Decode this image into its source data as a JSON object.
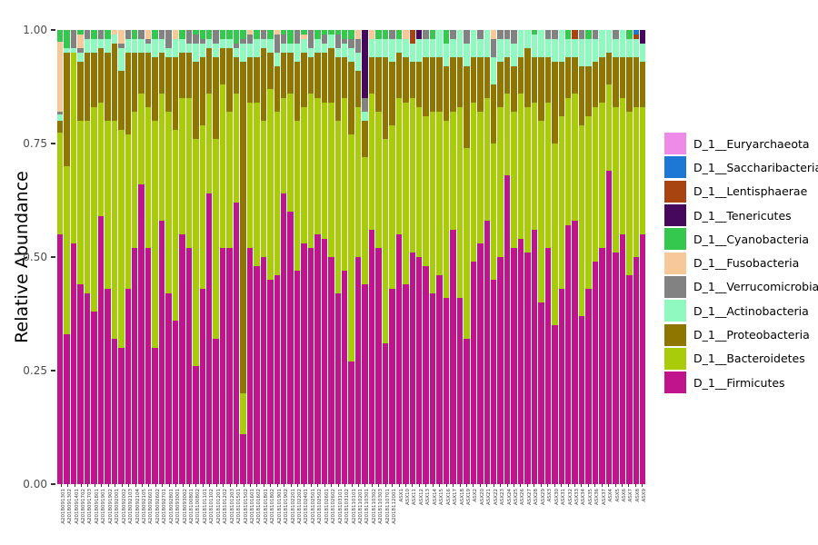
{
  "y_axis": {
    "title": "Relative Abundance",
    "ticks": [
      "1.00",
      "0.75",
      "0.50",
      "0.25",
      "0.00"
    ]
  },
  "legend_order_top_to_bottom": [
    "D_1__Euryarchaeota",
    "D_1__Saccharibacteria",
    "D_1__Lentisphaerae",
    "D_1__Tenericutes",
    "D_1__Cyanobacteria",
    "D_1__Fusobacteria",
    "D_1__Verrucomicrobia",
    "D_1__Actinobacteria",
    "D_1__Proteobacteria",
    "D_1__Bacteroidetes",
    "D_1__Firmicutes"
  ],
  "chart_data": {
    "type": "bar",
    "stacked": true,
    "normalized": true,
    "ylabel": "Relative Abundance",
    "ylim": [
      0,
      1
    ],
    "grid": false,
    "legend_position": "right",
    "series_order_bottom_to_top": [
      "D_1__Firmicutes",
      "D_1__Bacteroidetes",
      "D_1__Proteobacteria",
      "D_1__Actinobacteria",
      "D_1__Verrucomicrobia",
      "D_1__Fusobacteria",
      "D_1__Cyanobacteria",
      "D_1__Tenericutes",
      "D_1__Lentisphaerae",
      "D_1__Saccharibacteria",
      "D_1__Euryarchaeota"
    ],
    "colors": {
      "D_1__Firmicutes": "#C0148C",
      "D_1__Bacteroidetes": "#A8CB0A",
      "D_1__Proteobacteria": "#8E7600",
      "D_1__Actinobacteria": "#90F9C0",
      "D_1__Verrucomicrobia": "#828282",
      "D_1__Fusobacteria": "#F8C998",
      "D_1__Cyanobacteria": "#34C94E",
      "D_1__Tenericutes": "#45085C",
      "D_1__Lentisphaerae": "#A84410",
      "D_1__Saccharibacteria": "#1C78D4",
      "D_1__Euryarchaeota": "#EE8AE8"
    },
    "categories": [
      "A2018091301",
      "A2018091302",
      "A2018091401",
      "A2018091702",
      "A2018091703",
      "A2018091801",
      "A2018091901",
      "A2018091902",
      "A2018092001",
      "A2018092002",
      "A2018092103",
      "A2018092104",
      "A2018092105",
      "A2018092601",
      "A2018092602",
      "A2018092701",
      "A2018092801",
      "A2018093001",
      "A2018093002",
      "A2018100801",
      "A2018100802",
      "A2018101101",
      "A2018101102",
      "A2018101201",
      "A2018101202",
      "A2018101203",
      "A2018101501",
      "A2018101502",
      "A2018101601",
      "A2018101602",
      "A2018101801",
      "A2018101802",
      "A2018101901",
      "A2018101902",
      "A2018102201",
      "A2018102202",
      "A2018102401",
      "A2018102501",
      "A2018102502",
      "A2018102601",
      "A2018102602",
      "A2018103101",
      "A2018103102",
      "A2018110101",
      "A2018110201",
      "A2018110301",
      "A2018110302",
      "A2018110303",
      "A2018110701",
      "A2018112001",
      "ASX1",
      "ASX10",
      "ASX11",
      "ASX12",
      "ASX13",
      "ASX14",
      "ASX15",
      "ASX16",
      "ASX17",
      "ASX18",
      "ASX19",
      "ASX2",
      "ASX20",
      "ASX21",
      "ASX22",
      "ASX23",
      "ASX24",
      "ASX25",
      "ASX26",
      "ASX27",
      "ASX28",
      "ASX29",
      "ASX3",
      "ASX30",
      "ASX31",
      "ASX32",
      "ASX33",
      "ASX34",
      "ASX35",
      "ASX36",
      "ASX37",
      "ASX4",
      "ASX5",
      "ASX6",
      "ASX7",
      "ASX8",
      "ASX9"
    ],
    "rows": [
      [
        0.55,
        0.225,
        0.025,
        0.015,
        0.005,
        0.155,
        0.025,
        0,
        0,
        0,
        0
      ],
      [
        0.33,
        0.37,
        0.25,
        0.01,
        0,
        0,
        0.04,
        0,
        0,
        0,
        0
      ],
      [
        0.53,
        0.42,
        0,
        0.01,
        0.04,
        0,
        0,
        0,
        0,
        0,
        0
      ],
      [
        0.44,
        0.36,
        0.13,
        0.02,
        0.01,
        0.03,
        0.01,
        0,
        0,
        0,
        0
      ],
      [
        0.42,
        0.38,
        0.15,
        0.03,
        0.02,
        0,
        0,
        0,
        0,
        0,
        0
      ],
      [
        0.38,
        0.45,
        0.12,
        0.03,
        0,
        0,
        0.02,
        0,
        0,
        0,
        0
      ],
      [
        0.59,
        0.25,
        0.12,
        0.02,
        0.02,
        0,
        0,
        0,
        0,
        0,
        0
      ],
      [
        0.43,
        0.37,
        0.15,
        0.03,
        0,
        0,
        0.02,
        0,
        0,
        0,
        0
      ],
      [
        0.32,
        0.48,
        0.17,
        0.02,
        0,
        0.01,
        0,
        0,
        0,
        0,
        0
      ],
      [
        0.3,
        0.48,
        0.13,
        0.05,
        0.01,
        0.03,
        0,
        0,
        0,
        0,
        0
      ],
      [
        0.43,
        0.34,
        0.18,
        0.03,
        0.02,
        0,
        0,
        0,
        0,
        0,
        0
      ],
      [
        0.52,
        0.3,
        0.13,
        0.03,
        0,
        0,
        0.02,
        0,
        0,
        0,
        0
      ],
      [
        0.66,
        0.2,
        0.09,
        0.03,
        0.02,
        0,
        0,
        0,
        0,
        0,
        0
      ],
      [
        0.52,
        0.31,
        0.12,
        0.02,
        0.01,
        0.02,
        0,
        0,
        0,
        0,
        0
      ],
      [
        0.3,
        0.5,
        0.14,
        0.04,
        0,
        0,
        0.02,
        0,
        0,
        0,
        0
      ],
      [
        0.58,
        0.28,
        0.09,
        0.03,
        0.02,
        0,
        0,
        0,
        0,
        0,
        0
      ],
      [
        0.42,
        0.4,
        0.12,
        0.02,
        0.04,
        0,
        0,
        0,
        0,
        0,
        0
      ],
      [
        0.36,
        0.42,
        0.16,
        0.04,
        0,
        0.02,
        0,
        0,
        0,
        0,
        0
      ],
      [
        0.55,
        0.3,
        0.1,
        0.03,
        0,
        0,
        0.02,
        0,
        0,
        0,
        0
      ],
      [
        0.52,
        0.33,
        0.1,
        0.02,
        0.03,
        0,
        0,
        0,
        0,
        0,
        0
      ],
      [
        0.26,
        0.5,
        0.17,
        0.04,
        0.02,
        0,
        0.01,
        0,
        0,
        0,
        0
      ],
      [
        0.43,
        0.36,
        0.15,
        0.03,
        0.01,
        0,
        0.02,
        0,
        0,
        0,
        0
      ],
      [
        0.64,
        0.22,
        0.1,
        0.02,
        0,
        0,
        0.02,
        0,
        0,
        0,
        0
      ],
      [
        0.32,
        0.44,
        0.18,
        0.03,
        0.03,
        0,
        0,
        0,
        0,
        0,
        0
      ],
      [
        0.52,
        0.36,
        0.08,
        0.02,
        0,
        0,
        0.02,
        0,
        0,
        0,
        0
      ],
      [
        0.52,
        0.3,
        0.14,
        0.02,
        0,
        0,
        0.02,
        0,
        0,
        0,
        0
      ],
      [
        0.62,
        0.24,
        0.08,
        0.02,
        0.01,
        0,
        0.03,
        0,
        0,
        0,
        0
      ],
      [
        0.11,
        0.09,
        0.73,
        0.04,
        0.01,
        0,
        0.02,
        0,
        0,
        0,
        0
      ],
      [
        0.52,
        0.32,
        0.1,
        0.03,
        0.02,
        0.01,
        0,
        0,
        0,
        0,
        0
      ],
      [
        0.48,
        0.36,
        0.1,
        0.04,
        0,
        0,
        0.02,
        0,
        0,
        0,
        0
      ],
      [
        0.5,
        0.3,
        0.16,
        0.02,
        0.02,
        0,
        0,
        0,
        0,
        0,
        0
      ],
      [
        0.45,
        0.42,
        0.08,
        0.03,
        0,
        0,
        0.02,
        0,
        0,
        0,
        0
      ],
      [
        0.46,
        0.36,
        0.1,
        0.03,
        0.04,
        0.01,
        0,
        0,
        0,
        0,
        0
      ],
      [
        0.64,
        0.21,
        0.1,
        0.02,
        0.02,
        0,
        0.01,
        0,
        0,
        0,
        0
      ],
      [
        0.6,
        0.26,
        0.09,
        0.02,
        0,
        0,
        0.03,
        0,
        0,
        0,
        0
      ],
      [
        0.47,
        0.33,
        0.13,
        0.04,
        0.03,
        0,
        0,
        0,
        0,
        0,
        0
      ],
      [
        0.53,
        0.3,
        0.12,
        0.03,
        0,
        0.01,
        0.01,
        0,
        0,
        0,
        0
      ],
      [
        0.52,
        0.34,
        0.08,
        0.02,
        0.04,
        0,
        0,
        0,
        0,
        0,
        0
      ],
      [
        0.55,
        0.3,
        0.1,
        0.03,
        0,
        0,
        0.02,
        0,
        0,
        0,
        0
      ],
      [
        0.54,
        0.3,
        0.11,
        0.02,
        0.02,
        0,
        0.01,
        0,
        0,
        0,
        0
      ],
      [
        0.5,
        0.34,
        0.12,
        0.03,
        0,
        0,
        0.01,
        0,
        0,
        0,
        0
      ],
      [
        0.42,
        0.38,
        0.14,
        0.02,
        0.03,
        0,
        0.01,
        0,
        0,
        0,
        0
      ],
      [
        0.47,
        0.38,
        0.09,
        0.03,
        0.01,
        0,
        0.02,
        0,
        0,
        0,
        0
      ],
      [
        0.27,
        0.5,
        0.16,
        0.03,
        0.02,
        0,
        0.02,
        0,
        0,
        0,
        0
      ],
      [
        0.5,
        0.33,
        0.08,
        0.04,
        0.03,
        0.02,
        0,
        0,
        0,
        0,
        0
      ],
      [
        0.44,
        0.28,
        0.08,
        0.02,
        0.03,
        0,
        0,
        0.15,
        0,
        0,
        0
      ],
      [
        0.56,
        0.3,
        0.08,
        0.04,
        0,
        0.02,
        0,
        0,
        0,
        0,
        0
      ],
      [
        0.52,
        0.3,
        0.12,
        0.04,
        0,
        0,
        0.02,
        0,
        0,
        0,
        0
      ],
      [
        0.31,
        0.45,
        0.18,
        0.04,
        0,
        0,
        0.02,
        0,
        0,
        0,
        0
      ],
      [
        0.43,
        0.36,
        0.14,
        0.05,
        0.02,
        0,
        0,
        0,
        0,
        0,
        0
      ],
      [
        0.55,
        0.3,
        0.1,
        0.03,
        0,
        0,
        0.02,
        0,
        0,
        0,
        0
      ],
      [
        0.44,
        0.4,
        0.1,
        0.04,
        0,
        0.02,
        0,
        0,
        0,
        0,
        0
      ],
      [
        0.51,
        0.34,
        0.08,
        0.04,
        0,
        0,
        0,
        0,
        0.03,
        0,
        0
      ],
      [
        0.5,
        0.33,
        0.1,
        0.05,
        0,
        0,
        0,
        0.02,
        0,
        0,
        0
      ],
      [
        0.48,
        0.33,
        0.13,
        0.04,
        0.02,
        0,
        0,
        0,
        0,
        0,
        0
      ],
      [
        0.42,
        0.4,
        0.12,
        0.04,
        0,
        0,
        0.02,
        0,
        0,
        0,
        0
      ],
      [
        0.46,
        0.36,
        0.12,
        0.06,
        0,
        0,
        0,
        0,
        0,
        0,
        0
      ],
      [
        0.41,
        0.39,
        0.12,
        0.05,
        0,
        0,
        0.03,
        0,
        0,
        0,
        0
      ],
      [
        0.56,
        0.26,
        0.12,
        0.04,
        0.02,
        0,
        0,
        0,
        0,
        0,
        0
      ],
      [
        0.41,
        0.42,
        0.11,
        0.06,
        0,
        0,
        0,
        0,
        0,
        0,
        0
      ],
      [
        0.32,
        0.42,
        0.18,
        0.05,
        0.03,
        0,
        0,
        0,
        0,
        0,
        0
      ],
      [
        0.49,
        0.35,
        0.1,
        0.06,
        0,
        0,
        0,
        0,
        0,
        0,
        0
      ],
      [
        0.53,
        0.29,
        0.12,
        0.04,
        0.02,
        0,
        0,
        0,
        0,
        0,
        0
      ],
      [
        0.58,
        0.27,
        0.09,
        0.06,
        0,
        0,
        0,
        0,
        0,
        0,
        0
      ],
      [
        0.45,
        0.3,
        0.13,
        0.06,
        0.04,
        0.02,
        0,
        0,
        0,
        0,
        0
      ],
      [
        0.5,
        0.33,
        0.1,
        0.05,
        0.02,
        0,
        0,
        0,
        0,
        0,
        0
      ],
      [
        0.68,
        0.18,
        0.08,
        0.04,
        0.02,
        0,
        0,
        0,
        0,
        0,
        0
      ],
      [
        0.52,
        0.3,
        0.1,
        0.05,
        0.03,
        0,
        0,
        0,
        0,
        0,
        0
      ],
      [
        0.54,
        0.32,
        0.08,
        0.06,
        0,
        0,
        0,
        0,
        0,
        0,
        0
      ],
      [
        0.51,
        0.32,
        0.13,
        0.04,
        0,
        0,
        0,
        0,
        0,
        0,
        0
      ],
      [
        0.56,
        0.28,
        0.1,
        0.05,
        0,
        0,
        0.01,
        0,
        0,
        0,
        0
      ],
      [
        0.4,
        0.4,
        0.14,
        0.06,
        0,
        0,
        0,
        0,
        0,
        0,
        0
      ],
      [
        0.52,
        0.32,
        0.1,
        0.04,
        0.02,
        0,
        0,
        0,
        0,
        0,
        0
      ],
      [
        0.35,
        0.4,
        0.18,
        0.05,
        0.02,
        0,
        0,
        0,
        0,
        0,
        0
      ],
      [
        0.43,
        0.38,
        0.12,
        0.07,
        0,
        0,
        0,
        0,
        0,
        0,
        0
      ],
      [
        0.57,
        0.28,
        0.09,
        0.04,
        0,
        0,
        0.02,
        0,
        0,
        0,
        0
      ],
      [
        0.58,
        0.28,
        0.08,
        0.04,
        0,
        0,
        0,
        0,
        0.02,
        0,
        0
      ],
      [
        0.37,
        0.42,
        0.13,
        0.06,
        0.02,
        0,
        0,
        0,
        0,
        0,
        0
      ],
      [
        0.43,
        0.38,
        0.11,
        0.06,
        0,
        0,
        0.02,
        0,
        0,
        0,
        0
      ],
      [
        0.49,
        0.34,
        0.1,
        0.05,
        0.02,
        0,
        0,
        0,
        0,
        0,
        0
      ],
      [
        0.52,
        0.32,
        0.1,
        0.06,
        0,
        0,
        0,
        0,
        0,
        0,
        0
      ],
      [
        0.69,
        0.19,
        0.07,
        0.05,
        0,
        0,
        0,
        0,
        0,
        0,
        0
      ],
      [
        0.51,
        0.32,
        0.11,
        0.04,
        0.02,
        0,
        0,
        0,
        0,
        0,
        0
      ],
      [
        0.55,
        0.3,
        0.09,
        0.06,
        0,
        0,
        0,
        0,
        0,
        0,
        0
      ],
      [
        0.46,
        0.36,
        0.12,
        0.04,
        0,
        0,
        0.02,
        0,
        0,
        0,
        0
      ],
      [
        0.5,
        0.33,
        0.11,
        0.04,
        0,
        0,
        0,
        0,
        0.01,
        0.01,
        0
      ],
      [
        0.55,
        0.28,
        0.1,
        0.04,
        0,
        0,
        0,
        0.03,
        0,
        0,
        0
      ]
    ]
  }
}
